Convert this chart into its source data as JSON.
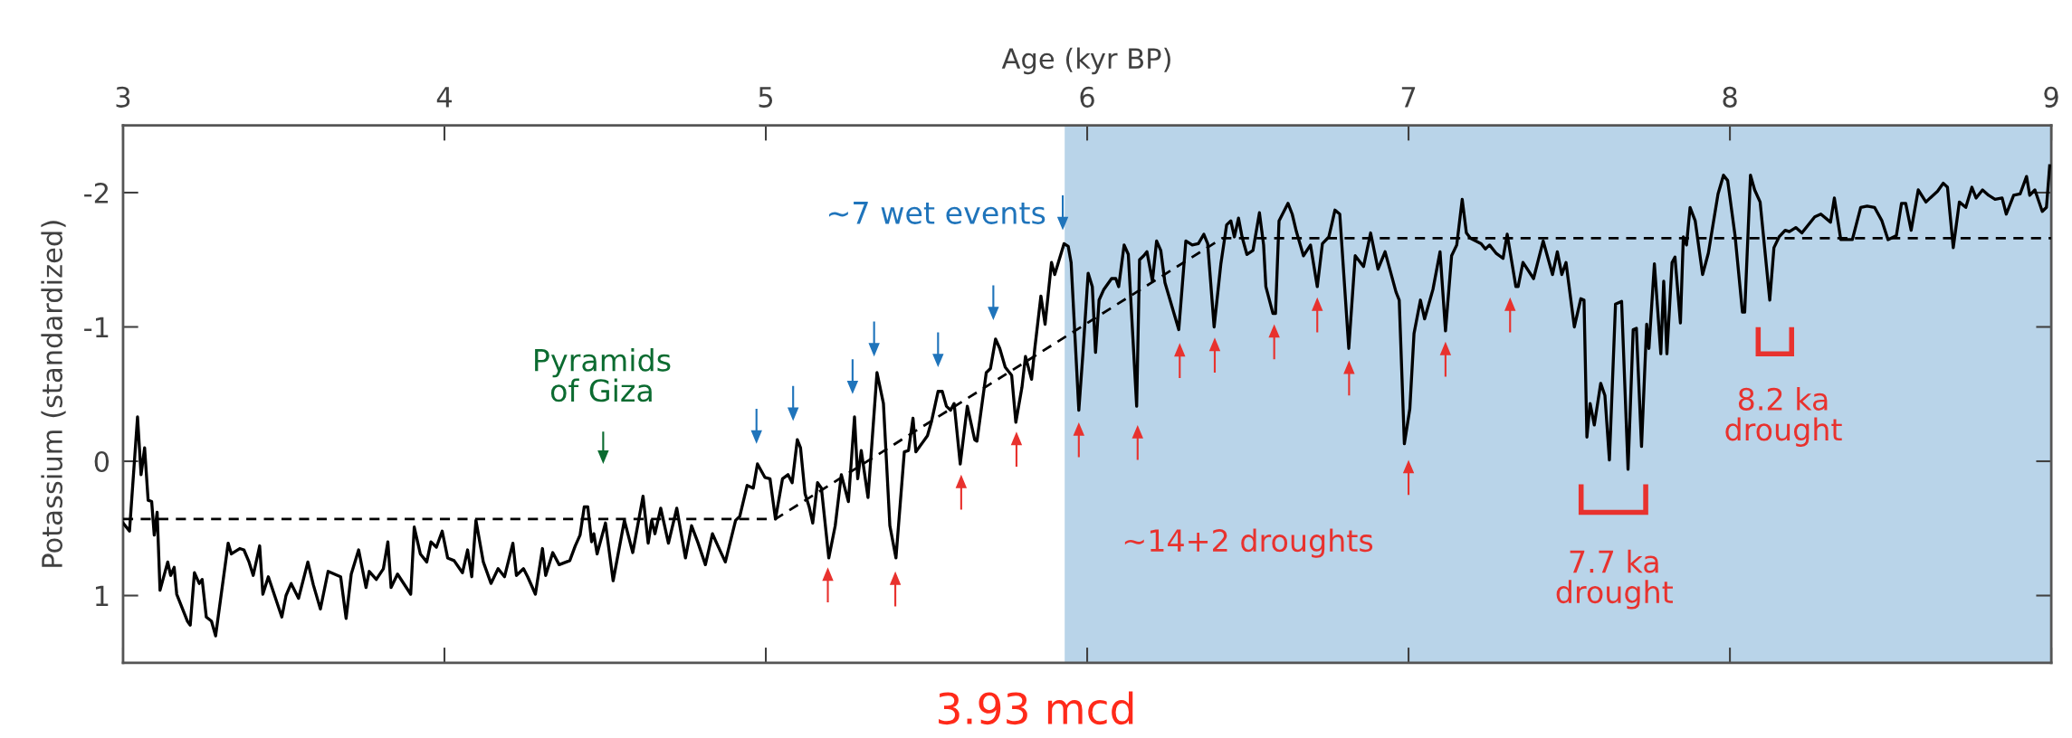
{
  "chart_data": {
    "type": "line",
    "xlabel": "Age (kyr BP)",
    "ylabel": "Potassium (standardized)",
    "xlim": [
      3,
      9
    ],
    "xticks": [
      3,
      4,
      5,
      6,
      7,
      8,
      9
    ],
    "ylim": [
      1.5,
      -2.5
    ],
    "yticks": [
      -2,
      -1,
      0,
      1
    ],
    "grid": false,
    "series": [
      {
        "color": "#000000",
        "x": [
          3.0,
          3.02,
          3.045,
          3.056,
          3.067,
          3.078,
          3.089,
          3.097,
          3.106,
          3.115,
          3.139,
          3.148,
          3.159,
          3.167,
          3.2,
          3.209,
          3.222,
          3.237,
          3.246,
          3.259,
          3.275,
          3.288,
          3.327,
          3.337,
          3.363,
          3.376,
          3.392,
          3.405,
          3.425,
          3.435,
          3.452,
          3.494,
          3.507,
          3.523,
          3.546,
          3.575,
          3.592,
          3.614,
          3.638,
          3.677,
          3.694,
          3.71,
          3.733,
          3.756,
          3.766,
          3.788,
          3.81,
          3.824,
          3.834,
          3.854,
          3.895,
          3.906,
          3.925,
          3.945,
          3.958,
          3.975,
          3.993,
          4.01,
          4.03,
          4.056,
          4.072,
          4.085,
          4.098,
          4.121,
          4.145,
          4.167,
          4.187,
          4.213,
          4.224,
          4.246,
          4.259,
          4.283,
          4.305,
          4.315,
          4.337,
          4.357,
          4.39,
          4.407,
          4.422,
          4.435,
          4.446,
          4.458,
          4.465,
          4.475,
          4.501,
          4.525,
          4.56,
          4.586,
          4.618,
          4.634,
          4.645,
          4.655,
          4.673,
          4.697,
          4.723,
          4.75,
          4.769,
          4.788,
          4.812,
          4.834,
          4.851,
          4.874,
          4.906,
          4.919,
          4.942,
          4.961,
          4.974,
          4.997,
          5.013,
          5.03,
          5.052,
          5.069,
          5.082,
          5.098,
          5.108,
          5.122,
          5.135,
          5.146,
          5.161,
          5.173,
          5.196,
          5.216,
          5.235,
          5.257,
          5.276,
          5.286,
          5.297,
          5.318,
          5.346,
          5.366,
          5.386,
          5.405,
          5.431,
          5.444,
          5.458,
          5.467,
          5.503,
          5.516,
          5.536,
          5.549,
          5.562,
          5.575,
          5.586,
          5.605,
          5.627,
          5.65,
          5.657,
          5.686,
          5.699,
          5.715,
          5.728,
          5.745,
          5.765,
          5.778,
          5.797,
          5.808,
          5.827,
          5.837,
          5.856,
          5.869,
          5.889,
          5.899,
          5.928,
          5.941,
          5.95,
          5.974,
          5.987,
          6.003,
          6.016,
          6.026,
          6.037,
          6.052,
          6.076,
          6.089,
          6.098,
          6.115,
          6.128,
          6.154,
          6.163,
          6.176,
          6.186,
          6.203,
          6.216,
          6.229,
          6.242,
          6.285,
          6.307,
          6.327,
          6.346,
          6.363,
          6.375,
          6.395,
          6.416,
          6.434,
          6.447,
          6.458,
          6.471,
          6.482,
          6.497,
          6.516,
          6.536,
          6.549,
          6.556,
          6.578,
          6.586,
          6.597,
          6.625,
          6.638,
          6.651,
          6.673,
          6.695,
          6.716,
          6.732,
          6.752,
          6.771,
          6.786,
          6.814,
          6.834,
          6.86,
          6.882,
          6.905,
          6.927,
          6.961,
          6.971,
          6.987,
          7.004,
          7.017,
          7.037,
          7.05,
          7.063,
          7.076,
          7.098,
          7.115,
          7.134,
          7.15,
          7.167,
          7.18,
          7.193,
          7.226,
          7.239,
          7.252,
          7.272,
          7.294,
          7.307,
          7.334,
          7.341,
          7.356,
          7.389,
          7.419,
          7.448,
          7.463,
          7.477,
          7.49,
          7.516,
          7.536,
          7.546,
          7.555,
          7.565,
          7.578,
          7.598,
          7.611,
          7.625,
          7.644,
          7.663,
          7.683,
          7.699,
          7.709,
          7.725,
          7.741,
          7.748,
          7.765,
          7.785,
          7.794,
          7.804,
          7.82,
          7.829,
          7.846,
          7.855,
          7.865,
          7.876,
          7.892,
          7.915,
          7.933,
          7.963,
          7.98,
          7.993,
          8.016,
          8.039,
          8.046,
          8.064,
          8.077,
          8.094,
          8.124,
          8.137,
          8.153,
          8.172,
          8.185,
          8.205,
          8.224,
          8.264,
          8.283,
          8.313,
          8.325,
          8.345,
          8.381,
          8.407,
          8.427,
          8.45,
          8.473,
          8.492,
          8.518,
          8.534,
          8.547,
          8.564,
          8.586,
          8.61,
          8.623,
          8.646,
          8.664,
          8.677,
          8.695,
          8.714,
          8.734,
          8.753,
          8.766,
          8.786,
          8.805,
          8.825,
          8.847,
          8.86,
          8.883,
          8.903,
          8.923,
          8.933,
          8.949,
          8.972,
          8.985,
          8.995
        ],
        "values": [
          0.46,
          0.52,
          -0.33,
          0.1,
          -0.1,
          0.29,
          0.3,
          0.55,
          0.38,
          0.96,
          0.75,
          0.85,
          0.79,
          0.99,
          1.19,
          1.22,
          0.83,
          0.91,
          0.88,
          1.16,
          1.19,
          1.3,
          0.61,
          0.69,
          0.65,
          0.66,
          0.75,
          0.85,
          0.63,
          0.99,
          0.86,
          1.16,
          1.0,
          0.91,
          1.02,
          0.75,
          0.92,
          1.1,
          0.82,
          0.86,
          1.17,
          0.84,
          0.66,
          0.94,
          0.82,
          0.88,
          0.8,
          0.6,
          0.94,
          0.84,
          0.99,
          0.49,
          0.69,
          0.75,
          0.6,
          0.64,
          0.52,
          0.72,
          0.74,
          0.83,
          0.66,
          0.86,
          0.44,
          0.75,
          0.91,
          0.8,
          0.86,
          0.61,
          0.85,
          0.8,
          0.86,
          0.99,
          0.65,
          0.85,
          0.68,
          0.77,
          0.74,
          0.63,
          0.55,
          0.34,
          0.34,
          0.6,
          0.54,
          0.69,
          0.46,
          0.89,
          0.44,
          0.68,
          0.26,
          0.61,
          0.44,
          0.54,
          0.35,
          0.61,
          0.35,
          0.72,
          0.48,
          0.6,
          0.77,
          0.54,
          0.63,
          0.75,
          0.44,
          0.41,
          0.18,
          0.2,
          0.02,
          0.12,
          0.13,
          0.43,
          0.13,
          0.1,
          0.16,
          -0.16,
          -0.1,
          0.24,
          0.34,
          0.46,
          0.16,
          0.2,
          0.72,
          0.48,
          0.1,
          0.3,
          -0.33,
          0.13,
          -0.08,
          0.27,
          -0.66,
          -0.43,
          0.48,
          0.72,
          -0.07,
          -0.08,
          -0.32,
          -0.07,
          -0.19,
          -0.3,
          -0.52,
          -0.52,
          -0.41,
          -0.38,
          -0.43,
          0.02,
          -0.41,
          -0.16,
          -0.15,
          -0.66,
          -0.69,
          -0.91,
          -0.84,
          -0.7,
          -0.64,
          -0.29,
          -0.55,
          -0.78,
          -0.61,
          -0.84,
          -1.23,
          -1.02,
          -1.48,
          -1.39,
          -1.62,
          -1.6,
          -1.48,
          -0.38,
          -0.81,
          -1.4,
          -1.3,
          -0.81,
          -1.2,
          -1.28,
          -1.36,
          -1.36,
          -1.3,
          -1.61,
          -1.54,
          -0.41,
          -1.5,
          -1.53,
          -1.56,
          -1.34,
          -1.64,
          -1.57,
          -1.33,
          -0.98,
          -1.64,
          -1.61,
          -1.62,
          -1.69,
          -1.62,
          -1.0,
          -1.47,
          -1.76,
          -1.79,
          -1.67,
          -1.81,
          -1.67,
          -1.54,
          -1.57,
          -1.85,
          -1.61,
          -1.3,
          -1.1,
          -1.1,
          -1.79,
          -1.92,
          -1.84,
          -1.71,
          -1.53,
          -1.61,
          -1.3,
          -1.62,
          -1.67,
          -1.87,
          -1.84,
          -0.84,
          -1.53,
          -1.45,
          -1.7,
          -1.43,
          -1.56,
          -1.26,
          -1.2,
          -0.13,
          -0.39,
          -0.95,
          -1.2,
          -1.06,
          -1.17,
          -1.28,
          -1.56,
          -0.97,
          -1.53,
          -1.61,
          -1.95,
          -1.7,
          -1.66,
          -1.62,
          -1.58,
          -1.61,
          -1.55,
          -1.51,
          -1.69,
          -1.3,
          -1.3,
          -1.48,
          -1.36,
          -1.64,
          -1.39,
          -1.56,
          -1.39,
          -1.48,
          -1.0,
          -1.21,
          -1.2,
          -0.18,
          -0.43,
          -0.27,
          -0.58,
          -0.49,
          -0.01,
          -1.17,
          -1.19,
          0.06,
          -0.98,
          -0.99,
          -0.11,
          -1.02,
          -0.84,
          -1.47,
          -0.8,
          -1.34,
          -0.8,
          -1.48,
          -1.52,
          -1.03,
          -1.67,
          -1.61,
          -1.89,
          -1.79,
          -1.39,
          -1.55,
          -1.99,
          -2.13,
          -2.09,
          -1.68,
          -1.11,
          -1.11,
          -2.13,
          -2.02,
          -1.93,
          -1.2,
          -1.59,
          -1.67,
          -1.72,
          -1.71,
          -1.74,
          -1.7,
          -1.82,
          -1.84,
          -1.78,
          -1.96,
          -1.65,
          -1.65,
          -1.89,
          -1.9,
          -1.89,
          -1.79,
          -1.65,
          -1.68,
          -1.92,
          -1.92,
          -1.72,
          -2.02,
          -1.93,
          -1.96,
          -2.01,
          -2.07,
          -2.04,
          -1.59,
          -1.93,
          -1.89,
          -2.04,
          -1.96,
          -2.02,
          -1.98,
          -1.95,
          -1.96,
          -1.84,
          -1.98,
          -1.99,
          -2.12,
          -1.98,
          -2.02,
          -1.86,
          -1.89,
          -2.2
        ]
      },
      {
        "color": "#000000",
        "line_style": "dashed",
        "x": [
          3.0,
          5.03,
          6.42,
          9.0
        ],
        "values": [
          0.43,
          0.43,
          -1.66,
          -1.66
        ]
      }
    ],
    "bands": [
      {
        "axis": "x",
        "from": 5.93,
        "to": 9,
        "color": "#b9d4e9"
      }
    ],
    "annotations": [
      "~7 wet events",
      "Pyramids of Giza",
      "~14+2 droughts",
      "7.7 ka drought",
      "8.2 ka drought",
      "3.93 mcd"
    ]
  }
}
